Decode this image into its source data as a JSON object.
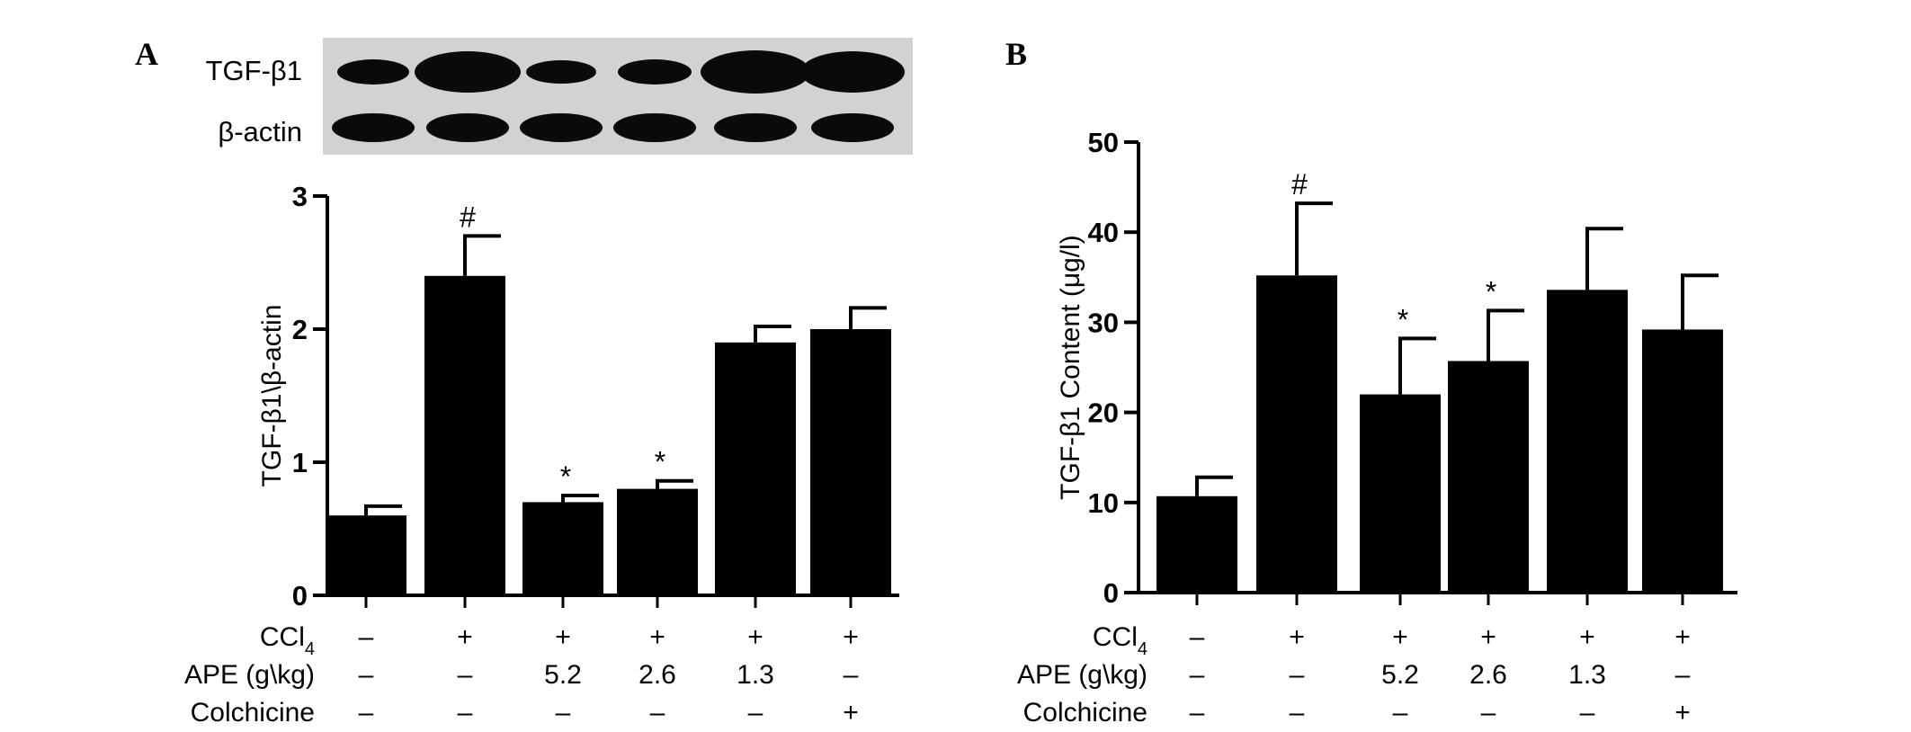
{
  "panels": {
    "a": {
      "letter": "A",
      "blot_labels": [
        "TGF-β1",
        "β-actin"
      ]
    },
    "b": {
      "letter": "B"
    }
  },
  "conditions": {
    "rows": [
      {
        "label": "CCl",
        "subscript": "4",
        "values": [
          "–",
          "+",
          "+",
          "+",
          "+",
          "+"
        ]
      },
      {
        "label": "APE (g\\kg)",
        "values": [
          "–",
          "–",
          "5.2",
          "2.6",
          "1.3",
          "–"
        ]
      },
      {
        "label": "Colchicine",
        "values": [
          "–",
          "–",
          "–",
          "–",
          "–",
          "+"
        ]
      }
    ]
  },
  "colors": {
    "bar": "#000000",
    "axis": "#000000",
    "blot_bg": "#d2d2d2",
    "band": "#0a0a0a"
  },
  "chart_data": [
    {
      "type": "bar",
      "panel": "A",
      "ylabel": "TGF-β1\\β-actin",
      "ylim": [
        0,
        3
      ],
      "yticks": [
        0,
        1,
        2,
        3
      ],
      "values": [
        0.6,
        2.4,
        0.7,
        0.8,
        1.9,
        2.0
      ],
      "errors": [
        0.07,
        0.3,
        0.05,
        0.06,
        0.12,
        0.16
      ],
      "annotations": [
        "",
        "#",
        "*",
        "*",
        "",
        ""
      ],
      "grid": false
    },
    {
      "type": "bar",
      "panel": "B",
      "ylabel": "TGF-β1 Content  (μg/l)",
      "ylim": [
        0,
        50
      ],
      "yticks": [
        0,
        10,
        20,
        30,
        40,
        50
      ],
      "values": [
        10.7,
        35.2,
        22.0,
        25.7,
        33.6,
        29.2
      ],
      "errors": [
        2.1,
        8.0,
        6.2,
        5.6,
        6.8,
        6.0
      ],
      "annotations": [
        "",
        "#",
        "*",
        "*",
        "",
        ""
      ],
      "grid": false
    }
  ]
}
